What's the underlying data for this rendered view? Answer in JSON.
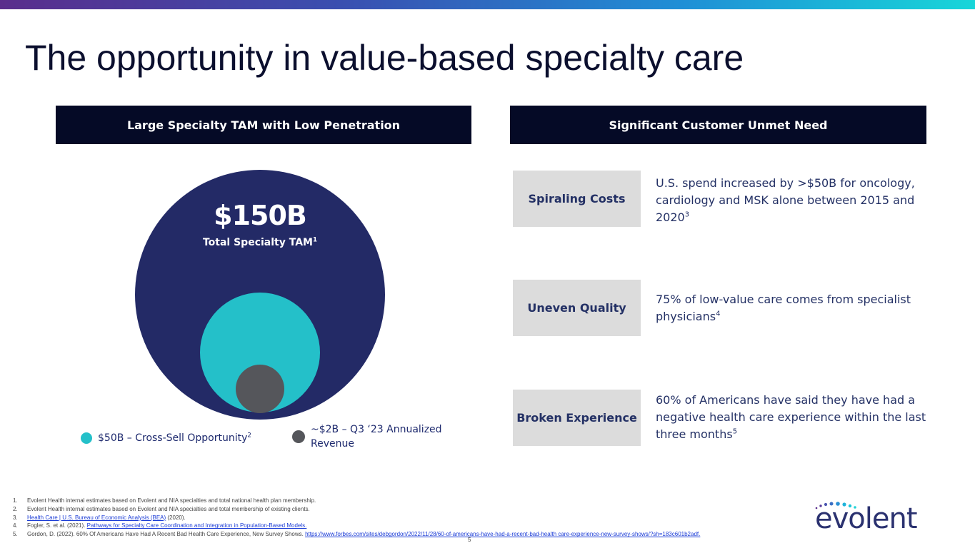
{
  "title": "The opportunity in value-based specialty care",
  "left_header": "Large Specialty TAM with Low Penetration",
  "right_header": "Significant Customer Unmet Need",
  "tam": {
    "value": "$150B",
    "label": "Total Specialty TAM",
    "label_sup": "1"
  },
  "legend": {
    "cross_sell": "$50B – Cross-Sell Opportunity",
    "cross_sell_sup": "2",
    "revenue": "~$2B – Q3 ‘23 Annualized Revenue"
  },
  "colors": {
    "navy": "#232a66",
    "teal": "#24c0c9",
    "gray": "#55565b",
    "header_bg": "#050a26"
  },
  "needs": [
    {
      "label": "Spiraling Costs",
      "text": "U.S. spend increased by >$50B for oncology, cardiology and MSK alone between 2015 and 2020",
      "sup": "3"
    },
    {
      "label": "Uneven Quality",
      "text": "75% of low-value care comes from specialist physicians",
      "sup": "4"
    },
    {
      "label": "Broken Experience",
      "text": "60% of Americans have said they have had a negative health care experience within the last three months",
      "sup": "5"
    }
  ],
  "footnotes": [
    {
      "num": "1.",
      "text": "Evolent Health internal estimates based on Evolent and NIA specialties and total national health plan membership."
    },
    {
      "num": "2.",
      "text": "Evolent Health internal estimates based on Evolent and NIA specialties and total membership of existing clients."
    },
    {
      "num": "3.",
      "link": "Health Care | U.S. Bureau of Economic Analysis (BEA)",
      "after": " (2020)."
    },
    {
      "num": "4.",
      "before": "Fogler, S. et al. (2021). ",
      "link": "Pathways for Specialty Care Coordination and Integration in Population-Based Models."
    },
    {
      "num": "5.",
      "before": "Gordon, D. (2022). 60% Of Americans Have Had A Recent Bad Health Care Experience, New Survey Shows. ",
      "link": "https://www.forbes.com/sites/debgordon/2022/11/28/60-of-americans-have-had-a-recent-bad-health care-experience-new-survey-shows/?sh=183c601b2adf."
    }
  ],
  "page_number": "5",
  "logo_text": "evolent"
}
